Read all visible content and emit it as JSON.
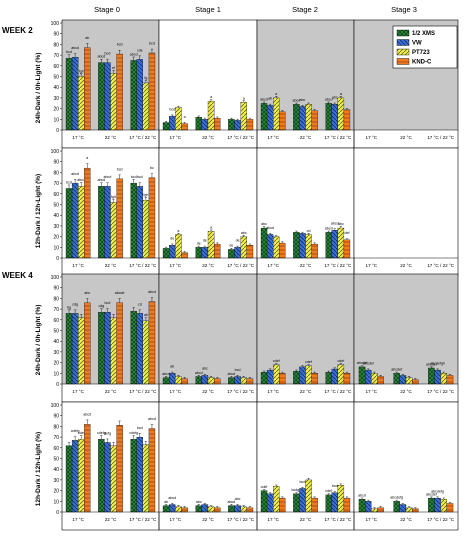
{
  "chart_data": {
    "type": "bar",
    "column_titles": [
      "Stage 0",
      "Stage 1",
      "Stage 2",
      "Stage 3"
    ],
    "week_labels": [
      "WEEK 2",
      "WEEK 4"
    ],
    "row_labels": [
      "24h-Dark / 0h-Light (%)",
      "12h-Dark / 12h-Light (%)",
      "24h-Dark / 0h-Light (%)",
      "12h-Dark / 12h-Light (%)"
    ],
    "categories": [
      "17 °C",
      "22 °C",
      "17 °C / 22 °C"
    ],
    "y_ticks": [
      "0",
      "10",
      "20",
      "30",
      "40",
      "50",
      "60",
      "70",
      "80",
      "90",
      "100"
    ],
    "ylim": [
      0,
      100
    ],
    "legend": [
      "1/2 XMS",
      "VW",
      "PT723",
      "KND-C"
    ],
    "series_colors": [
      "#2e8b3e",
      "#3a6fd6",
      "#f2f050",
      "#f07a24"
    ],
    "shaded_background": "#c7c7c7",
    "panels": [
      {
        "row": 0,
        "col": 0,
        "shaded": true,
        "values": [
          [
            67,
            68,
            50,
            77
          ],
          [
            63,
            63,
            53,
            71
          ],
          [
            65,
            66,
            44,
            72
          ]
        ],
        "labels": [
          [
            "bcd",
            "abcd",
            "fgh",
            "ab"
          ],
          [
            "abcd",
            "bcd",
            "ef",
            "bcd"
          ],
          [
            "abcd",
            "cde",
            "fg",
            "bcd"
          ]
        ]
      },
      {
        "row": 0,
        "col": 1,
        "shaded": false,
        "values": [
          [
            7,
            13,
            21,
            6
          ],
          [
            12,
            10,
            27,
            11
          ],
          [
            10,
            9,
            26,
            10
          ]
        ],
        "labels": [
          [
            "",
            "bcd",
            "",
            "a"
          ],
          [
            "",
            "",
            "a",
            ""
          ],
          [
            "",
            "",
            "a",
            ""
          ]
        ]
      },
      {
        "row": 0,
        "col": 2,
        "shaded": true,
        "values": [
          [
            25,
            23,
            30,
            17
          ],
          [
            24,
            22,
            24,
            18
          ],
          [
            25,
            24,
            30,
            19
          ]
        ],
        "labels": [
          [
            "abcd",
            "ab",
            "a",
            ""
          ],
          [
            "abcd",
            "abc",
            "",
            ""
          ],
          [
            "abcd",
            "abc",
            "a",
            ""
          ]
        ]
      },
      {
        "row": 0,
        "col": 3,
        "shaded": true,
        "values": [
          [
            0,
            0,
            0,
            0
          ],
          [
            0,
            0,
            0,
            0
          ],
          [
            0,
            0,
            0,
            0
          ]
        ],
        "labels": [
          [
            "",
            "",
            "",
            ""
          ],
          [
            "",
            "",
            "",
            ""
          ],
          [
            "",
            "",
            "",
            ""
          ]
        ]
      },
      {
        "row": 1,
        "col": 0,
        "shaded": false,
        "values": [
          [
            65,
            70,
            67,
            84
          ],
          [
            67,
            67,
            52,
            74
          ],
          [
            70,
            67,
            54,
            75
          ]
        ],
        "labels": [
          [
            "bcd",
            "abcd",
            "abcd",
            "a"
          ],
          [
            "abcd",
            "abcd",
            "fgh",
            "bcd"
          ],
          [
            "bcd",
            "bcd",
            "fgh",
            "bc"
          ]
        ]
      },
      {
        "row": 1,
        "col": 1,
        "shaded": false,
        "values": [
          [
            9,
            12,
            22,
            5
          ],
          [
            10,
            10,
            25,
            13
          ],
          [
            8,
            10,
            20,
            12
          ]
        ],
        "labels": [
          [
            "",
            "de",
            "a",
            ""
          ],
          [
            "de",
            "de",
            "a",
            ""
          ],
          [
            "de",
            "de",
            "abc",
            ""
          ]
        ]
      },
      {
        "row": 1,
        "col": 2,
        "shaded": false,
        "values": [
          [
            28,
            22,
            20,
            14
          ],
          [
            24,
            23,
            22,
            13
          ],
          [
            24,
            26,
            28,
            17
          ]
        ],
        "labels": [
          [
            "abc",
            "abcd",
            "",
            ""
          ],
          [
            "",
            "",
            "cd",
            ""
          ],
          [
            "abcd",
            "abcd",
            "abc",
            "def"
          ]
        ]
      },
      {
        "row": 1,
        "col": 3,
        "shaded": false,
        "values": [
          [
            0,
            0,
            0,
            0
          ],
          [
            0,
            0,
            0,
            0
          ],
          [
            0,
            0,
            0,
            0
          ]
        ],
        "labels": [
          [
            "",
            "",
            "",
            ""
          ],
          [
            "",
            "",
            "",
            ""
          ],
          [
            "",
            "",
            "",
            ""
          ]
        ]
      },
      {
        "row": 2,
        "col": 0,
        "shaded": true,
        "values": [
          [
            66,
            66,
            62,
            76
          ],
          [
            67,
            67,
            62,
            76
          ],
          [
            68,
            66,
            59,
            77
          ]
        ],
        "labels": [
          [
            "bg",
            "cdg",
            "",
            "abc"
          ],
          [
            "cdg",
            "bcd",
            "",
            "abcde"
          ],
          [
            "",
            "cd",
            "ab",
            "abcd"
          ]
        ]
      },
      {
        "row": 2,
        "col": 1,
        "shaded": true,
        "values": [
          [
            6,
            10,
            7,
            5
          ],
          [
            7,
            8,
            6,
            5
          ],
          [
            6,
            7,
            6,
            5
          ]
        ],
        "labels": [
          [
            "abcd",
            "ab",
            "",
            ""
          ],
          [
            "abcd",
            "abc",
            "",
            ""
          ],
          [
            "abcd",
            "bcd",
            "",
            ""
          ]
        ]
      },
      {
        "row": 2,
        "col": 2,
        "shaded": true,
        "values": [
          [
            11,
            13,
            18,
            10
          ],
          [
            12,
            16,
            17,
            10
          ],
          [
            11,
            14,
            18,
            10
          ]
        ],
        "labels": [
          [
            "",
            "",
            "cdef",
            ""
          ],
          [
            "",
            "",
            "cdef",
            ""
          ],
          [
            "",
            "",
            "cdef",
            ""
          ]
        ]
      },
      {
        "row": 2,
        "col": 3,
        "shaded": true,
        "values": [
          [
            16,
            13,
            10,
            7
          ],
          [
            10,
            8,
            6,
            4
          ],
          [
            15,
            13,
            10,
            8
          ]
        ],
        "labels": [
          [
            "abcdef",
            "abcdef",
            "",
            ""
          ],
          [
            "abcdef",
            "",
            "",
            ""
          ],
          [
            "abcdef",
            "abcdefgh",
            "",
            ""
          ]
        ]
      },
      {
        "row": 3,
        "col": 0,
        "shaded": false,
        "values": [
          [
            62,
            67,
            68,
            82
          ],
          [
            68,
            65,
            62,
            81
          ],
          [
            68,
            70,
            63,
            78
          ]
        ],
        "labels": [
          [
            "",
            "cdefg",
            "cdef",
            "abcd"
          ],
          [
            "cdefg",
            "defg",
            "",
            ""
          ],
          [
            "cdefg",
            "bcd",
            "",
            "abcd"
          ]
        ]
      },
      {
        "row": 3,
        "col": 1,
        "shaded": false,
        "values": [
          [
            6,
            7,
            5,
            4
          ],
          [
            6,
            7,
            5,
            4
          ],
          [
            6,
            6,
            5,
            4
          ]
        ],
        "labels": [
          [
            "ab",
            "abcd",
            "",
            ""
          ],
          [
            "abc",
            "",
            "",
            ""
          ],
          [
            "abcd",
            "abc",
            "",
            ""
          ]
        ]
      },
      {
        "row": 3,
        "col": 2,
        "shaded": false,
        "values": [
          [
            20,
            17,
            24,
            13
          ],
          [
            17,
            22,
            30,
            13
          ],
          [
            16,
            18,
            25,
            13
          ]
        ],
        "labels": [
          [
            "cdef",
            "",
            "",
            ""
          ],
          [
            "bcdgh",
            "bcd",
            "",
            ""
          ],
          [
            "cdef",
            "bcd",
            "",
            ""
          ]
        ]
      },
      {
        "row": 3,
        "col": 3,
        "shaded": false,
        "values": [
          [
            12,
            10,
            3,
            4
          ],
          [
            10,
            7,
            4,
            3
          ],
          [
            13,
            13,
            12,
            8
          ]
        ],
        "labels": [
          [
            "abcd",
            "",
            "",
            ""
          ],
          [
            "abcdefg",
            "",
            "",
            ""
          ],
          [
            "abcdef",
            "abcdefg",
            "",
            ""
          ]
        ]
      }
    ]
  }
}
